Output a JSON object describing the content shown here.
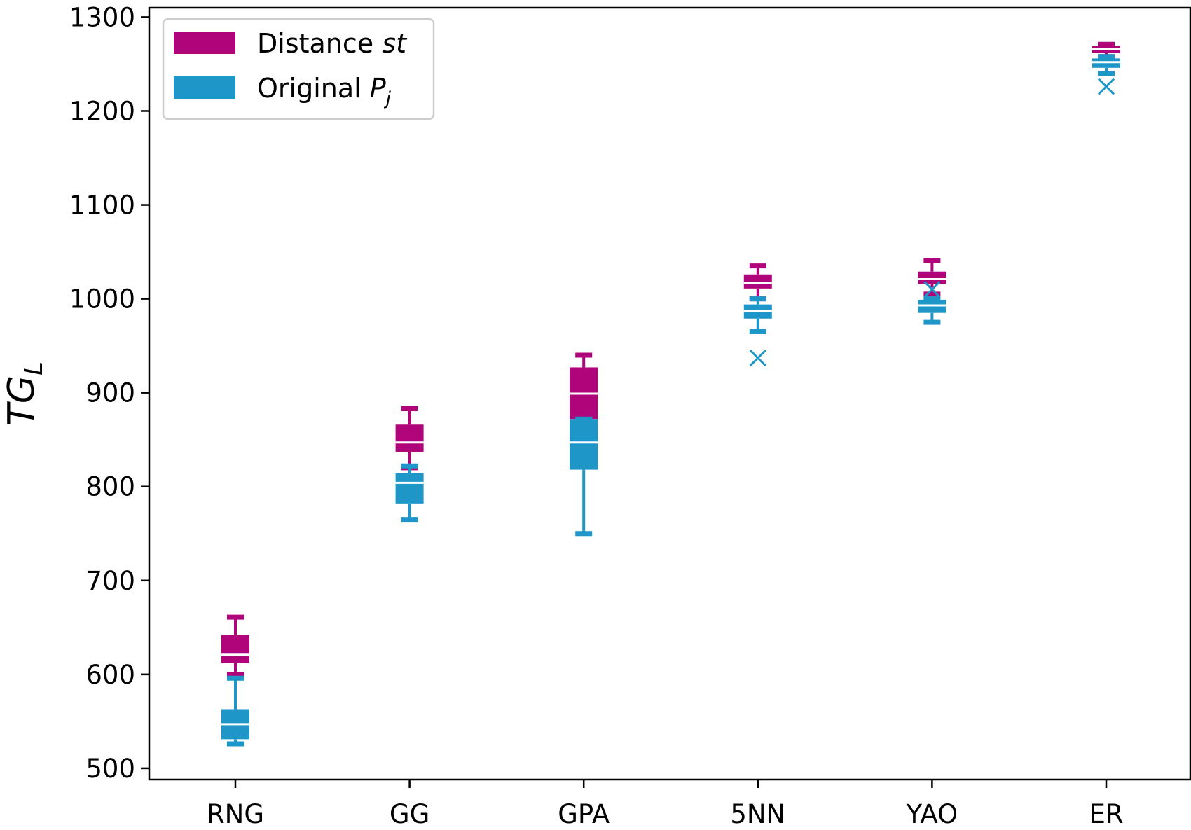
{
  "chart_data": {
    "type": "boxplot",
    "title": "",
    "xlabel": "",
    "ylabel": {
      "main": "TG",
      "sub": "L"
    },
    "ylim": [
      488,
      1310
    ],
    "yticks": [
      500,
      600,
      700,
      800,
      900,
      1000,
      1100,
      1200,
      1300
    ],
    "categories": [
      "RNG",
      "GG",
      "GPA",
      "5NN",
      "YAO",
      "ER"
    ],
    "grid": false,
    "legend_position": "top-left",
    "series": [
      {
        "name": "Distance",
        "name_italic": "st",
        "color": "#b0047a",
        "boxes": [
          {
            "whislo": 600,
            "q1": 612,
            "med": 621,
            "q3": 642,
            "whishi": 661,
            "fliers": []
          },
          {
            "whislo": 820,
            "q1": 837,
            "med": 847,
            "q3": 866,
            "whishi": 883,
            "fliers": []
          },
          {
            "whislo": 848,
            "q1": 872,
            "med": 899,
            "q3": 927,
            "whishi": 940,
            "fliers": []
          },
          {
            "whislo": 1000,
            "q1": 1011,
            "med": 1017,
            "q3": 1026,
            "whishi": 1035,
            "fliers": []
          },
          {
            "whislo": 1005,
            "q1": 1016,
            "med": 1021,
            "q3": 1029,
            "whishi": 1041,
            "fliers": []
          },
          {
            "whislo": 1258,
            "q1": 1262,
            "med": 1266,
            "q3": 1269,
            "whishi": 1271,
            "fliers": []
          }
        ]
      },
      {
        "name": "Original",
        "name_italic": "P",
        "name_italic_sub": "j",
        "color": "#1f96c8",
        "boxes": [
          {
            "whislo": 526,
            "q1": 531,
            "med": 547,
            "q3": 563,
            "whishi": 596,
            "fliers": []
          },
          {
            "whislo": 765,
            "q1": 782,
            "med": 804,
            "q3": 814,
            "whishi": 822,
            "fliers": []
          },
          {
            "whislo": 750,
            "q1": 818,
            "med": 847,
            "q3": 872,
            "whishi": 872,
            "fliers": []
          },
          {
            "whislo": 965,
            "q1": 979,
            "med": 987,
            "q3": 994,
            "whishi": 1000,
            "fliers": [
              937
            ]
          },
          {
            "whislo": 975,
            "q1": 985,
            "med": 993,
            "q3": 999,
            "whishi": 1000,
            "fliers": [
              1010
            ]
          },
          {
            "whislo": 1240,
            "q1": 1246,
            "med": 1252,
            "q3": 1256,
            "whishi": 1258,
            "fliers": [
              1226
            ]
          }
        ]
      }
    ]
  }
}
